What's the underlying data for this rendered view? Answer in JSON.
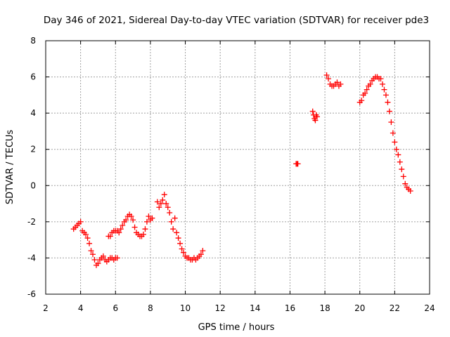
{
  "chart_data": {
    "type": "scatter",
    "title": "Day 346 of 2021, Sidereal Day-to-day VTEC variation (SDTVAR) for receiver pde3",
    "xlabel": "GPS time / hours",
    "ylabel": "SDTVAR / TECUs",
    "xlim": [
      2,
      24
    ],
    "ylim": [
      -6,
      8
    ],
    "xticks": [
      "2",
      "4",
      "6",
      "8",
      "10",
      "12",
      "14",
      "16",
      "18",
      "20",
      "22",
      "24"
    ],
    "yticks": [
      "-6",
      "-4",
      "-2",
      "0",
      "2",
      "4",
      "6",
      "8"
    ],
    "grid": true,
    "marker": "plus",
    "color": "#ff0000",
    "series": [
      {
        "x": [
          3.6,
          3.7,
          3.8,
          3.9,
          4.0,
          4.1,
          4.2,
          4.3,
          4.4,
          4.5,
          4.6,
          4.7,
          4.8,
          4.9,
          5.0,
          5.1,
          5.2,
          5.3,
          5.4,
          5.5,
          5.6,
          5.7,
          5.8,
          5.9,
          6.0,
          6.1
        ],
        "y": [
          -2.4,
          -2.3,
          -2.2,
          -2.1,
          -2.0,
          -2.5,
          -2.6,
          -2.7,
          -2.9,
          -3.2,
          -3.6,
          -3.8,
          -4.1,
          -4.4,
          -4.3,
          -4.1,
          -4.0,
          -3.9,
          -4.1,
          -4.2,
          -4.1,
          -4.0,
          -4.0,
          -4.1,
          -4.0,
          -4.0
        ]
      },
      {
        "x": [
          5.6,
          5.7,
          5.8,
          5.9,
          6.0,
          6.1,
          6.2,
          6.3,
          6.4,
          6.5,
          6.6,
          6.7,
          6.8,
          6.9,
          7.0,
          7.1,
          7.2,
          7.3,
          7.4,
          7.5,
          7.6,
          7.7,
          7.8,
          7.9,
          8.0,
          8.1
        ],
        "y": [
          -2.8,
          -2.8,
          -2.6,
          -2.5,
          -2.5,
          -2.5,
          -2.6,
          -2.4,
          -2.2,
          -2.0,
          -1.9,
          -1.7,
          -1.6,
          -1.7,
          -1.9,
          -2.3,
          -2.6,
          -2.7,
          -2.8,
          -2.8,
          -2.7,
          -2.4,
          -2.0,
          -1.7,
          -1.9,
          -1.8
        ]
      },
      {
        "x": [
          8.4,
          8.5,
          8.6,
          8.7,
          8.8,
          8.9,
          9.0,
          9.1,
          9.2,
          9.3,
          9.4,
          9.5,
          9.6,
          9.7,
          9.8,
          9.9,
          10.0,
          10.1,
          10.2,
          10.3,
          10.4,
          10.5,
          10.6,
          10.7,
          10.8,
          10.9,
          11.0
        ],
        "y": [
          -0.9,
          -1.2,
          -1.0,
          -0.8,
          -0.5,
          -1.0,
          -1.2,
          -1.5,
          -2.0,
          -2.4,
          -1.8,
          -2.6,
          -2.9,
          -3.2,
          -3.5,
          -3.7,
          -3.9,
          -4.0,
          -4.0,
          -4.1,
          -4.1,
          -4.0,
          -4.1,
          -4.0,
          -3.9,
          -3.8,
          -3.6
        ]
      },
      {
        "x": [
          16.35,
          16.4,
          16.45
        ],
        "y": [
          1.2,
          1.2,
          1.2
        ]
      },
      {
        "x": [
          17.3,
          17.35,
          17.4,
          17.45,
          17.5,
          17.55
        ],
        "y": [
          4.1,
          3.9,
          3.7,
          3.6,
          3.9,
          3.8
        ]
      },
      {
        "x": [
          18.1,
          18.2,
          18.3,
          18.4,
          18.5,
          18.6,
          18.7,
          18.8,
          18.9
        ],
        "y": [
          6.1,
          5.9,
          5.6,
          5.5,
          5.5,
          5.6,
          5.7,
          5.5,
          5.6
        ]
      },
      {
        "x": [
          20.0,
          20.1,
          20.2,
          20.3,
          20.4,
          20.5,
          20.6,
          20.7,
          20.8,
          20.9,
          21.0,
          21.1,
          21.2,
          21.3,
          21.4,
          21.5,
          21.6,
          21.7,
          21.8,
          21.9,
          22.0,
          22.1,
          22.2,
          22.3,
          22.4,
          22.5,
          22.6,
          22.7,
          22.8,
          22.9
        ],
        "y": [
          4.6,
          4.7,
          5.0,
          5.1,
          5.3,
          5.5,
          5.6,
          5.8,
          5.9,
          6.0,
          6.0,
          5.9,
          5.9,
          5.6,
          5.3,
          5.0,
          4.6,
          4.1,
          3.5,
          2.9,
          2.4,
          2.0,
          1.7,
          1.3,
          0.9,
          0.5,
          0.1,
          -0.1,
          -0.2,
          -0.3
        ]
      }
    ]
  }
}
